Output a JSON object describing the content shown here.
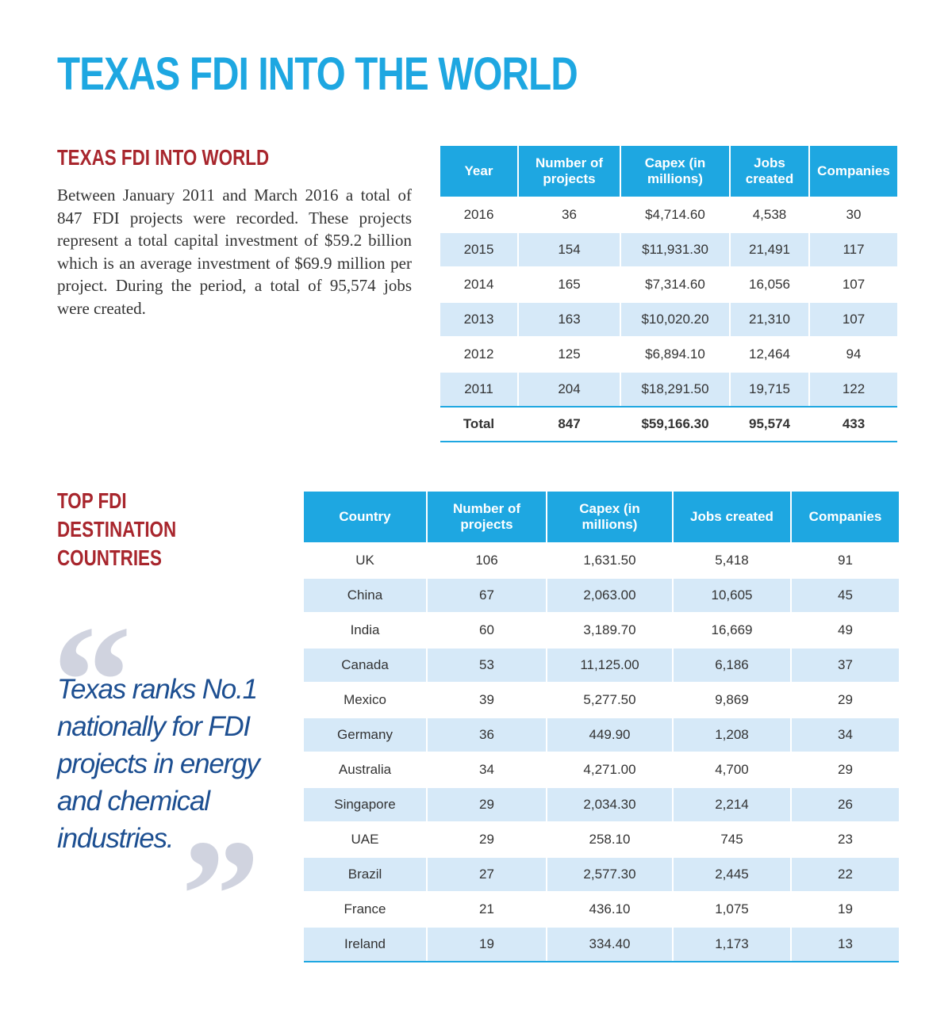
{
  "page": {
    "title": "TEXAS FDI INTO THE WORLD"
  },
  "section1": {
    "heading": "TEXAS FDI INTO WORLD",
    "paragraph": "Between January 2011 and March 2016 a total of 847 FDI projects were recorded. These projects represent a total capital investment of $59.2 billion which is an average investment of $69.9 million per project. During the period, a total of 95,574 jobs were created.",
    "table": {
      "headers": [
        "Year",
        "Number of projects",
        "Capex (in millions)",
        "Jobs created",
        "Companies"
      ],
      "rows": [
        [
          "2016",
          "36",
          "$4,714.60",
          "4,538",
          "30"
        ],
        [
          "2015",
          "154",
          "$11,931.30",
          "21,491",
          "117"
        ],
        [
          "2014",
          "165",
          "$7,314.60",
          "16,056",
          "107"
        ],
        [
          "2013",
          "163",
          "$10,020.20",
          "21,310",
          "107"
        ],
        [
          "2012",
          "125",
          "$6,894.10",
          "12,464",
          "94"
        ],
        [
          "2011",
          "204",
          "$18,291.50",
          "19,715",
          "122"
        ]
      ],
      "total": [
        "Total",
        "847",
        "$59,166.30",
        "95,574",
        "433"
      ]
    }
  },
  "section2": {
    "heading": "TOP FDI DESTINATION COUNTRIES",
    "table": {
      "headers": [
        "Country",
        "Number of projects",
        "Capex (in millions)",
        "Jobs created",
        "Companies"
      ],
      "rows": [
        [
          "UK",
          "106",
          "1,631.50",
          "5,418",
          "91"
        ],
        [
          "China",
          "67",
          "2,063.00",
          "10,605",
          "45"
        ],
        [
          "India",
          "60",
          "3,189.70",
          "16,669",
          "49"
        ],
        [
          "Canada",
          "53",
          "11,125.00",
          "6,186",
          "37"
        ],
        [
          "Mexico",
          "39",
          "5,277.50",
          "9,869",
          "29"
        ],
        [
          "Germany",
          "36",
          "449.90",
          "1,208",
          "34"
        ],
        [
          "Australia",
          "34",
          "4,271.00",
          "4,700",
          "29"
        ],
        [
          "Singapore",
          "29",
          "2,034.30",
          "2,214",
          "26"
        ],
        [
          "UAE",
          "29",
          "258.10",
          "745",
          "23"
        ],
        [
          "Brazil",
          "27",
          "2,577.30",
          "2,445",
          "22"
        ],
        [
          "France",
          "21",
          "436.10",
          "1,075",
          "19"
        ],
        [
          "Ireland",
          "19",
          "334.40",
          "1,173",
          "13"
        ]
      ]
    }
  },
  "quote": {
    "open_mark": "“",
    "text": "Texas ranks No.1 nationally for FDI projects in energy and chemical industries.",
    "close_mark": "”"
  },
  "colors": {
    "title_blue": "#1ea7e1",
    "heading_red": "#a8262d",
    "row_alt": "#d6e9f8",
    "quote_navy": "#1d4f91",
    "quote_mark_gray": "#d0d3df"
  }
}
